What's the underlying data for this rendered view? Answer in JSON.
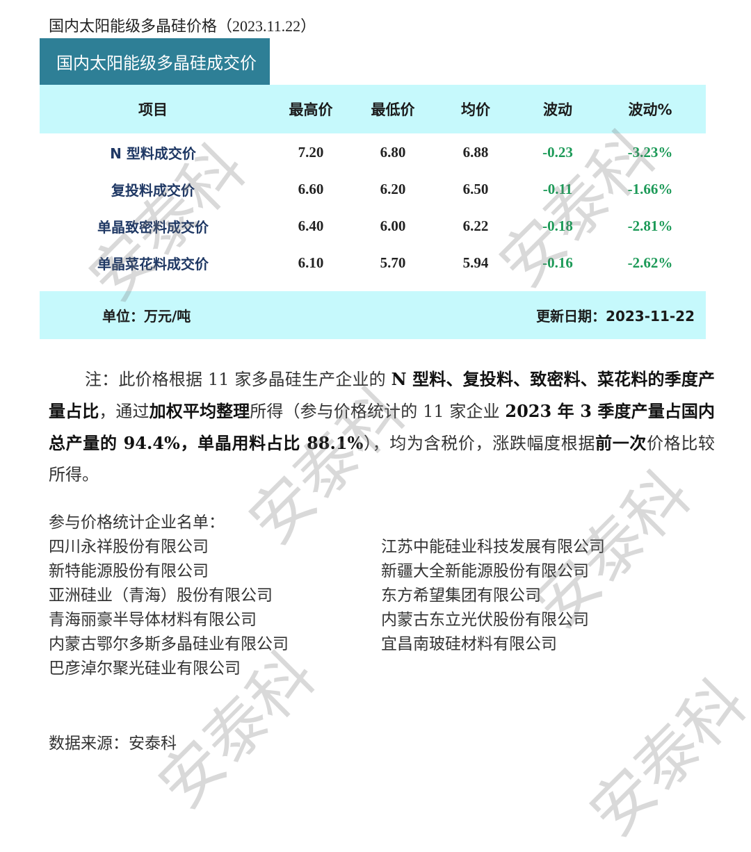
{
  "title": "国内太阳能级多晶硅价格（2023.11.22）",
  "table_title": "国内太阳能级多晶硅成交价",
  "columns": [
    "项目",
    "最高价",
    "最低价",
    "均价",
    "波动",
    "波动%"
  ],
  "rows": [
    {
      "item": "N 型料成交价",
      "high": "7.20",
      "low": "6.80",
      "avg": "6.88",
      "chg": "-0.23",
      "pct": "-3.23%"
    },
    {
      "item": "复投料成交价",
      "high": "6.60",
      "low": "6.20",
      "avg": "6.50",
      "chg": "-0.11",
      "pct": "-1.66%"
    },
    {
      "item": "单晶致密料成交价",
      "high": "6.40",
      "low": "6.00",
      "avg": "6.22",
      "chg": "-0.18",
      "pct": "-2.81%"
    },
    {
      "item": "单晶菜花料成交价",
      "high": "6.10",
      "low": "5.70",
      "avg": "5.94",
      "chg": "-0.16",
      "pct": "-2.62%"
    }
  ],
  "unit": "单位：万元/吨",
  "update": "更新日期：2023-11-22",
  "note": [
    {
      "t": "注：此价格根据 11 家多晶硅生产企业的 ",
      "b": false
    },
    {
      "t": "N 型料、复投料、致密料、菜花料的季度产量占比",
      "b": true
    },
    {
      "t": "，通过",
      "b": false
    },
    {
      "t": "加权平均整理",
      "b": true
    },
    {
      "t": "所得（参与价格统计的 11 家企业 ",
      "b": false
    },
    {
      "t": "2023 年 3 季度产量占国内总产量的 94.4%，单晶用料占比 88.1%",
      "b": true
    },
    {
      "t": "），均为含税价，涨跌幅度根据",
      "b": false
    },
    {
      "t": "前一次",
      "b": true
    },
    {
      "t": "价格比较所得。",
      "b": false
    }
  ],
  "companies_header": "参与价格统计企业名单：",
  "companies": [
    "四川永祥股份有限公司",
    "江苏中能硅业科技发展有限公司",
    "新特能源股份有限公司",
    "新疆大全新能源股份有限公司",
    "亚洲硅业（青海）股份有限公司",
    "东方希望集团有限公司",
    "青海丽豪半导体材料有限公司",
    "内蒙古东立光伏股份有限公司",
    "内蒙古鄂尔多斯多晶硅业有限公司",
    "宜昌南玻硅材料有限公司",
    "巴彦淖尔聚光硅业有限公司"
  ],
  "source": "数据来源：安泰科",
  "watermark": "安泰科",
  "colors": {
    "header_bar": "#2e7f96",
    "table_bg": "#c6f9fc",
    "item_text": "#1f3864",
    "change_text": "#1d9a58"
  }
}
